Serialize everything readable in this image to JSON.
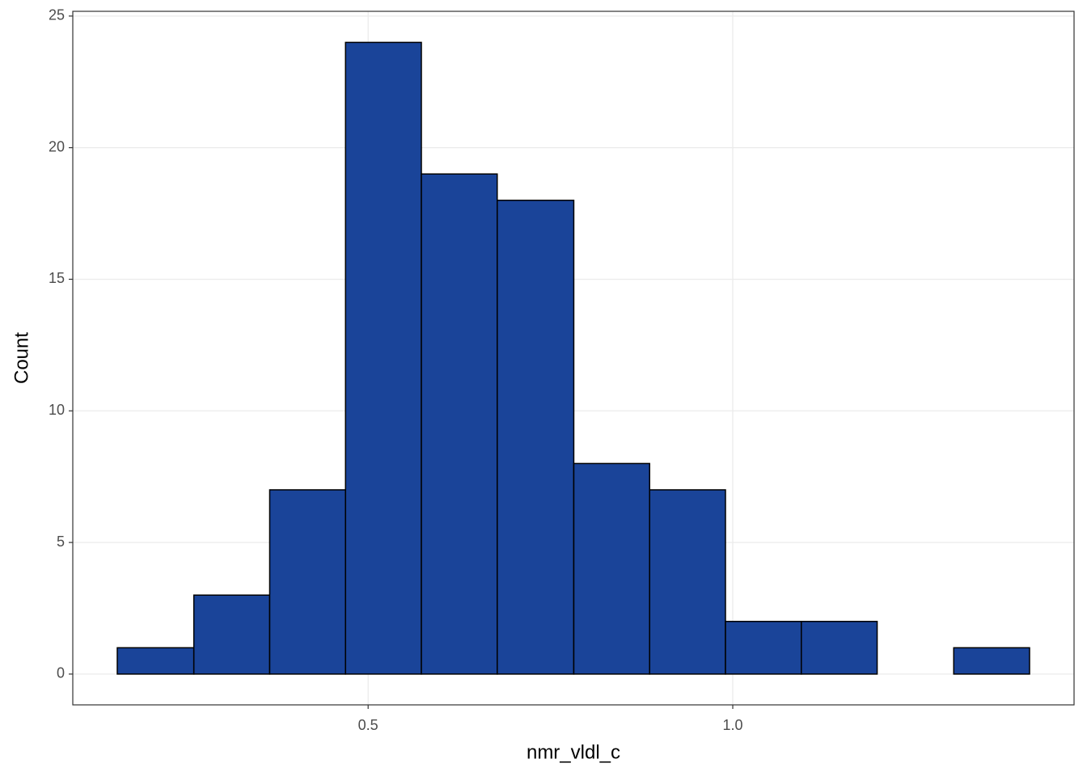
{
  "chart_data": {
    "type": "histogram",
    "x_label": "nmr_vldl_c",
    "y_label": "Count",
    "bins": [
      0.156,
      0.261,
      0.365,
      0.469,
      0.573,
      0.677,
      0.782,
      0.886,
      0.99,
      1.094,
      1.198,
      1.303,
      1.407
    ],
    "values": [
      1,
      3,
      7,
      24,
      19,
      18,
      8,
      7,
      2,
      2,
      0,
      1
    ],
    "color": "#1a4499",
    "edge_color": "#000000",
    "xlim": [
      0.095,
      1.468
    ],
    "xticks": [
      0.5,
      {
        "value": 1,
        "label": "1.0"
      }
    ],
    "ylim": [
      -1.17,
      25.18
    ],
    "yticks": [
      0,
      5,
      10,
      15,
      20,
      25
    ],
    "grid": true
  }
}
